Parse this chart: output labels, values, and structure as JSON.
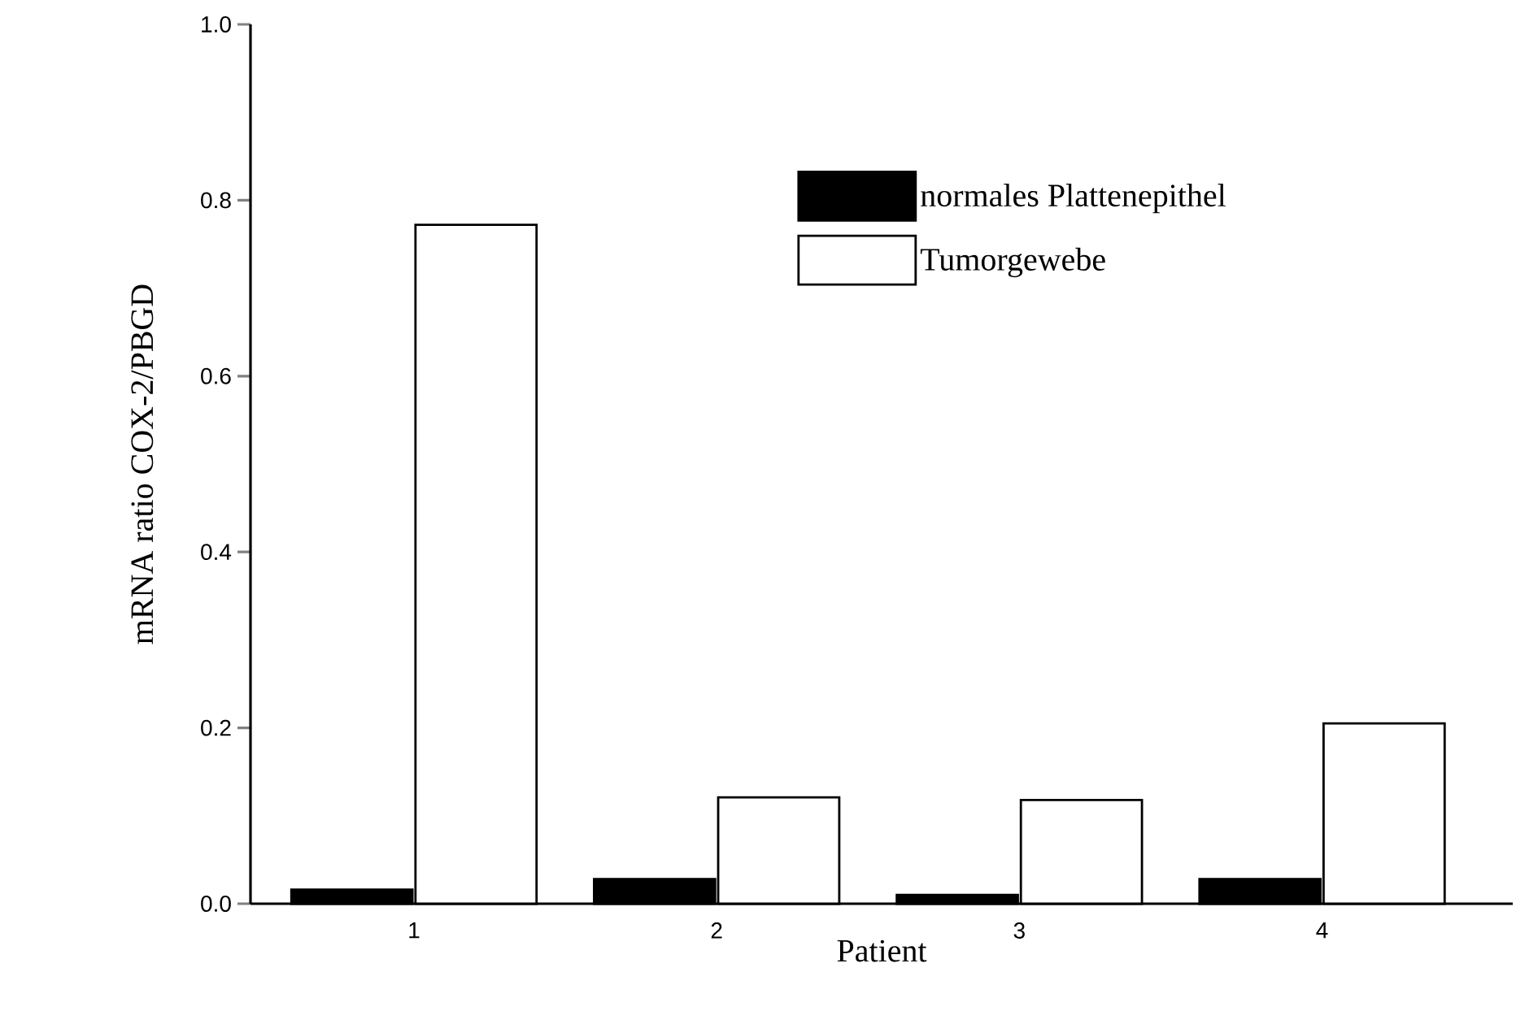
{
  "chart_data": {
    "type": "bar",
    "xlabel": "Patient",
    "ylabel": "mRNA ratio COX-2/PBGD",
    "categories": [
      "1",
      "2",
      "3",
      "4"
    ],
    "series": [
      {
        "name": "normales Plattenepithel",
        "color": "#000000",
        "values": [
          0.016,
          0.028,
          0.01,
          0.028
        ]
      },
      {
        "name": "Tumorgewebe",
        "color": "#ffffff",
        "values": [
          0.772,
          0.121,
          0.118,
          0.205
        ]
      }
    ],
    "ylim": [
      0,
      1.0
    ],
    "yticks": [
      {
        "value": 0,
        "label": "0.0"
      },
      {
        "value": 0.2,
        "label": "0.2"
      },
      {
        "value": 0.4,
        "label": "0.4"
      },
      {
        "value": 0.6,
        "label": "0.6"
      },
      {
        "value": 0.8,
        "label": "0.8"
      },
      {
        "value": 1.0,
        "label": "1.0"
      }
    ],
    "legend": "top right"
  }
}
